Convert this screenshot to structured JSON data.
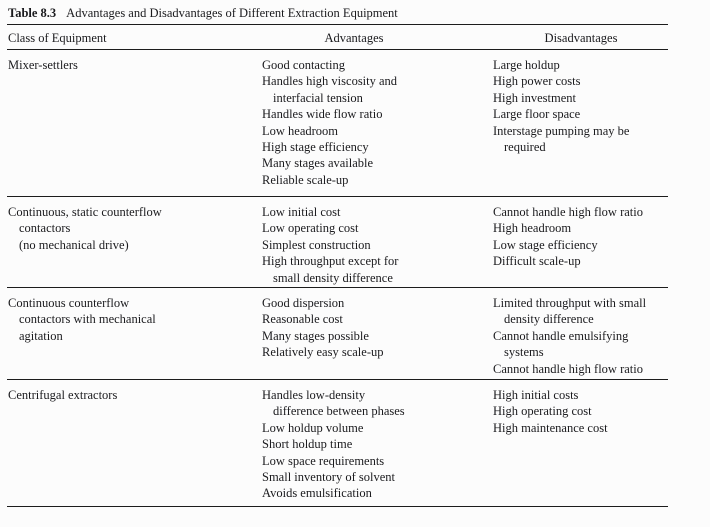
{
  "table": {
    "label": "Table 8.3",
    "title": "Advantages and Disadvantages of Different Extraction Equipment",
    "columns": [
      "Class of Equipment",
      "Advantages",
      "Disadvantages"
    ],
    "rows": [
      {
        "class": [
          {
            "text": "Mixer-settlers"
          }
        ],
        "advantages": [
          {
            "text": "Good contacting"
          },
          {
            "text": "Handles high viscosity and"
          },
          {
            "text": "interfacial tension",
            "cont": true
          },
          {
            "text": "Handles wide flow ratio"
          },
          {
            "text": "Low headroom"
          },
          {
            "text": "High stage efficiency"
          },
          {
            "text": "Many stages available"
          },
          {
            "text": "Reliable scale-up"
          }
        ],
        "disadvantages": [
          {
            "text": "Large holdup"
          },
          {
            "text": "High power costs"
          },
          {
            "text": "High investment"
          },
          {
            "text": "Large floor space"
          },
          {
            "text": "Interstage pumping may be"
          },
          {
            "text": "required",
            "cont": true
          }
        ]
      },
      {
        "class": [
          {
            "text": "Continuous, static counterflow"
          },
          {
            "text": "contactors",
            "cont": true
          },
          {
            "text": "(no mechanical drive)",
            "cont": true
          }
        ],
        "advantages": [
          {
            "text": "Low initial cost"
          },
          {
            "text": "Low operating cost"
          },
          {
            "text": "Simplest construction"
          },
          {
            "text": "High throughput except for"
          },
          {
            "text": "small density difference",
            "cont": true
          }
        ],
        "disadvantages": [
          {
            "text": "Cannot handle high flow ratio"
          },
          {
            "text": "High headroom"
          },
          {
            "text": "Low stage efficiency"
          },
          {
            "text": "Difficult scale-up"
          }
        ]
      },
      {
        "class": [
          {
            "text": "Continuous counterflow"
          },
          {
            "text": "contactors with mechanical",
            "cont": true
          },
          {
            "text": "agitation",
            "cont": true
          }
        ],
        "advantages": [
          {
            "text": "Good dispersion"
          },
          {
            "text": "Reasonable cost"
          },
          {
            "text": "Many stages possible"
          },
          {
            "text": "Relatively easy scale-up"
          }
        ],
        "disadvantages": [
          {
            "text": "Limited throughput with small"
          },
          {
            "text": "density difference",
            "cont": true
          },
          {
            "text": "Cannot handle emulsifying"
          },
          {
            "text": "systems",
            "cont": true
          },
          {
            "text": "Cannot handle high flow ratio"
          }
        ]
      },
      {
        "class": [
          {
            "text": "Centrifugal extractors"
          }
        ],
        "advantages": [
          {
            "text": "Handles low-density"
          },
          {
            "text": "difference between phases",
            "cont": true
          },
          {
            "text": "Low holdup volume"
          },
          {
            "text": "Short holdup time"
          },
          {
            "text": "Low space requirements"
          },
          {
            "text": "Small inventory of solvent"
          },
          {
            "text": "Avoids emulsification"
          }
        ],
        "disadvantages": [
          {
            "text": "High initial costs"
          },
          {
            "text": "High operating cost"
          },
          {
            "text": "High maintenance cost"
          }
        ]
      }
    ]
  },
  "colors": {
    "background": "#fcfcfc",
    "text": "#1b1b1e",
    "rule": "#1c1c1c"
  }
}
